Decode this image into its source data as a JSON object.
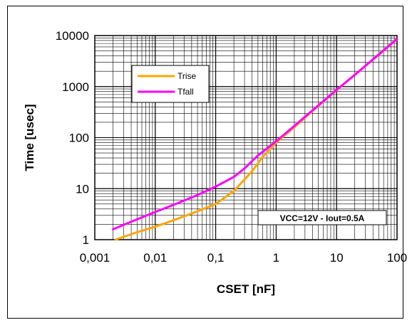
{
  "chart_data": {
    "type": "line",
    "xscale": "log",
    "yscale": "log",
    "xlim": [
      0.001,
      100
    ],
    "ylim": [
      1,
      10000
    ],
    "xlabel": "CSET [nF]",
    "ylabel": "Time [usec]",
    "x_tick_labels": [
      "0,001",
      "0,01",
      "0,1",
      "1",
      "10",
      "100"
    ],
    "y_tick_labels": [
      "1",
      "10",
      "100",
      "1000",
      "10000"
    ],
    "grid": true,
    "legend_position": "top-left",
    "annotation": "VCC=12V - Iout=0.5A",
    "series": [
      {
        "name": "Trise",
        "color": "#FFA500",
        "x": [
          0.0022,
          0.005,
          0.01,
          0.02,
          0.05,
          0.1,
          0.2,
          0.4,
          0.6,
          1,
          2,
          5,
          10,
          20,
          50,
          100
        ],
        "y": [
          1.0,
          1.4,
          1.8,
          2.4,
          3.6,
          5.0,
          9.0,
          22,
          42,
          80,
          160,
          420,
          850,
          1700,
          4200,
          8500
        ]
      },
      {
        "name": "Tfall",
        "color": "#FF00FF",
        "x": [
          0.002,
          0.005,
          0.01,
          0.02,
          0.05,
          0.1,
          0.2,
          0.3,
          0.5,
          1,
          2,
          5,
          10,
          20,
          50,
          100
        ],
        "y": [
          1.6,
          2.5,
          3.5,
          4.8,
          7.5,
          11,
          17,
          25,
          45,
          85,
          170,
          430,
          860,
          1700,
          4300,
          8600
        ]
      }
    ]
  }
}
